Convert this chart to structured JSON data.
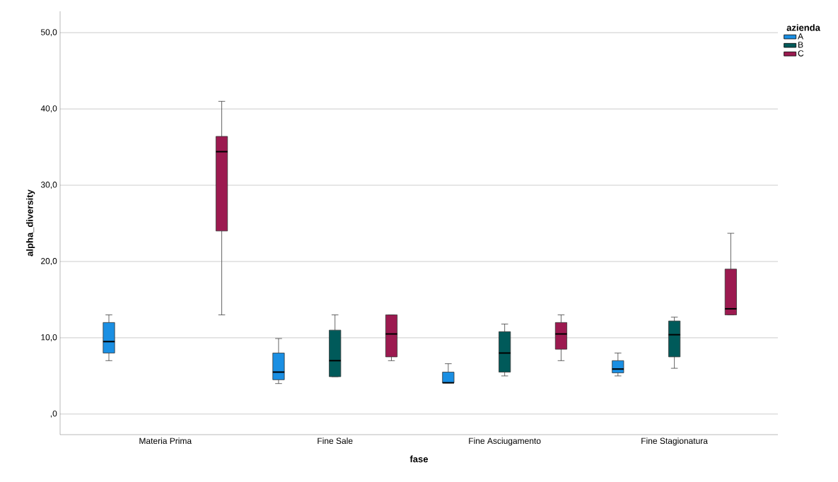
{
  "chart_data": {
    "type": "box",
    "xlabel": "fase",
    "ylabel": "alpha_diversity",
    "legend_title": "azienda",
    "categories": [
      "Materia Prima",
      "Fine Sale",
      "Fine Asciugamento",
      "Fine Stagionatura"
    ],
    "series": [
      {
        "name": "A",
        "color": "#1a8fe3",
        "boxes": [
          {
            "low": 7,
            "q1": 8,
            "median": 9.5,
            "q3": 12,
            "high": 13
          },
          {
            "low": 4,
            "q1": 4.5,
            "median": 5.5,
            "q3": 8,
            "high": 9.9
          },
          {
            "low": 4.1,
            "q1": 4.1,
            "median": 4.1,
            "q3": 5.5,
            "high": 6.6
          },
          {
            "low": 5,
            "q1": 5.4,
            "median": 5.9,
            "q3": 7,
            "high": 8
          }
        ]
      },
      {
        "name": "B",
        "color": "#005a5a",
        "boxes": [
          null,
          {
            "low": 4.9,
            "q1": 4.9,
            "median": 7,
            "q3": 11,
            "high": 13
          },
          {
            "low": 5,
            "q1": 5.5,
            "median": 8,
            "q3": 10.8,
            "high": 11.8
          },
          {
            "low": 6,
            "q1": 7.5,
            "median": 10.4,
            "q3": 12.2,
            "high": 12.7
          }
        ]
      },
      {
        "name": "C",
        "color": "#9c1a50",
        "boxes": [
          {
            "low": 13,
            "q1": 24,
            "median": 34.4,
            "q3": 36.4,
            "high": 41
          },
          {
            "low": 7,
            "q1": 7.5,
            "median": 10.5,
            "q3": 13,
            "high": 13
          },
          {
            "low": 7,
            "q1": 8.5,
            "median": 10.5,
            "q3": 12,
            "high": 13
          },
          {
            "low": 13,
            "q1": 13,
            "median": 13.8,
            "q3": 19,
            "high": 23.7
          }
        ]
      }
    ],
    "ylim": [
      -2.7,
      52.8
    ],
    "yticks": [
      {
        "value": 0,
        "label": ",0"
      },
      {
        "value": 10,
        "label": "10,0"
      },
      {
        "value": 20,
        "label": "20,0"
      },
      {
        "value": 30,
        "label": "30,0"
      },
      {
        "value": 40,
        "label": "40,0"
      },
      {
        "value": 50,
        "label": "50,0"
      }
    ],
    "grid": "y",
    "legend": "top right"
  }
}
